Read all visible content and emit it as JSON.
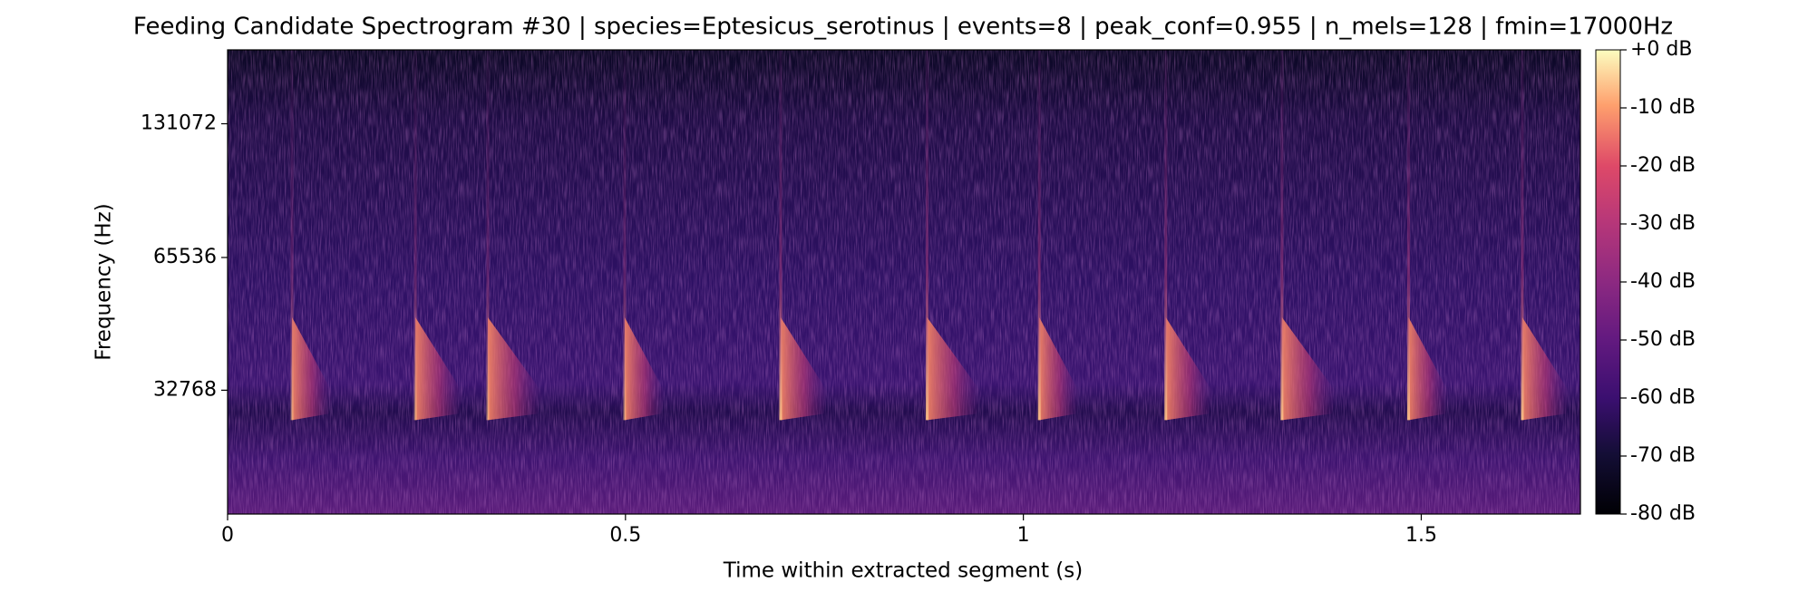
{
  "chart_data": {
    "type": "spectrogram",
    "title": "Feeding Candidate Spectrogram #30 | species=Eptesicus_serotinus | events=8 | peak_conf=0.955 | n_mels=128 | fmin=17000Hz",
    "xlabel": "Time within extracted segment (s)",
    "ylabel": "Frequency (Hz)",
    "xlim": [
      0,
      1.7
    ],
    "xticks": [
      0,
      0.5,
      1,
      1.5
    ],
    "yscale": "mel",
    "ylim": [
      17000,
      192000
    ],
    "yticks": [
      32768,
      65536,
      131072
    ],
    "colormap": "magma",
    "clim": [
      -80,
      0
    ],
    "cticks": [
      {
        "value": 0,
        "label": "+0 dB"
      },
      {
        "value": -10,
        "label": "-10 dB"
      },
      {
        "value": -20,
        "label": "-20 dB"
      },
      {
        "value": -30,
        "label": "-30 dB"
      },
      {
        "value": -40,
        "label": "-40 dB"
      },
      {
        "value": -50,
        "label": "-50 dB"
      },
      {
        "value": -60,
        "label": "-60 dB"
      },
      {
        "value": -70,
        "label": "-70 dB"
      },
      {
        "value": -80,
        "label": "-80 dB"
      }
    ],
    "call_times": [
      0.081,
      0.236,
      0.327,
      0.499,
      0.695,
      0.879,
      1.02,
      1.179,
      1.325,
      1.484,
      1.627
    ]
  }
}
